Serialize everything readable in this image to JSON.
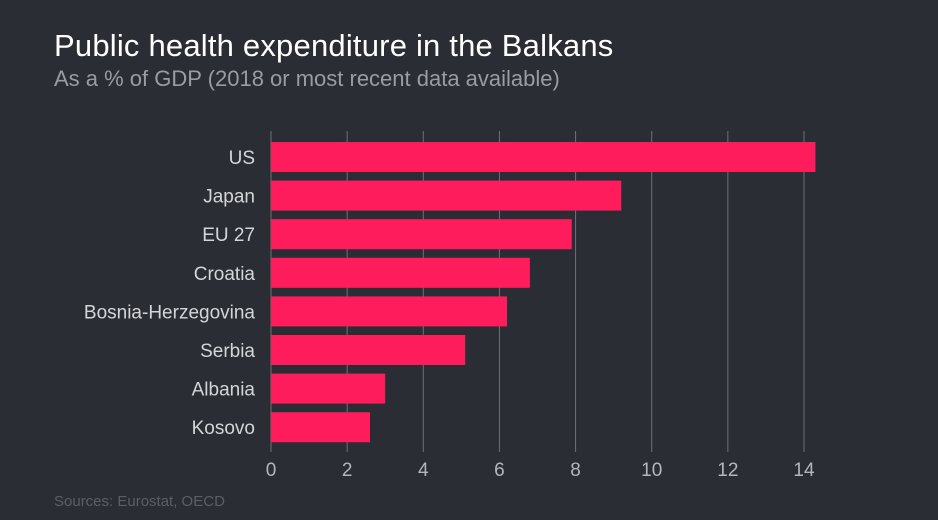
{
  "title": "Public health expenditure in the Balkans",
  "subtitle": "As a % of GDP (2018 or most recent data available)",
  "source": "Sources: Eurostat, OECD",
  "colors": {
    "background": "#2b2d34",
    "bar": "#ff1c5c",
    "grid": "#6e7076"
  },
  "chart_data": {
    "type": "bar",
    "orientation": "horizontal",
    "title": "Public health expenditure in the Balkans",
    "subtitle": "As a % of GDP (2018 or most recent data available)",
    "categories": [
      "US",
      "Japan",
      "EU 27",
      "Croatia",
      "Bosnia-Herzegovina",
      "Serbia",
      "Albania",
      "Kosovo"
    ],
    "values": [
      14.3,
      9.2,
      7.9,
      6.8,
      6.2,
      5.1,
      3.0,
      2.6
    ],
    "xlim": [
      0,
      14
    ],
    "xticks": [
      0,
      2,
      4,
      6,
      8,
      10,
      12,
      14
    ],
    "grid": true,
    "legend": "none"
  }
}
